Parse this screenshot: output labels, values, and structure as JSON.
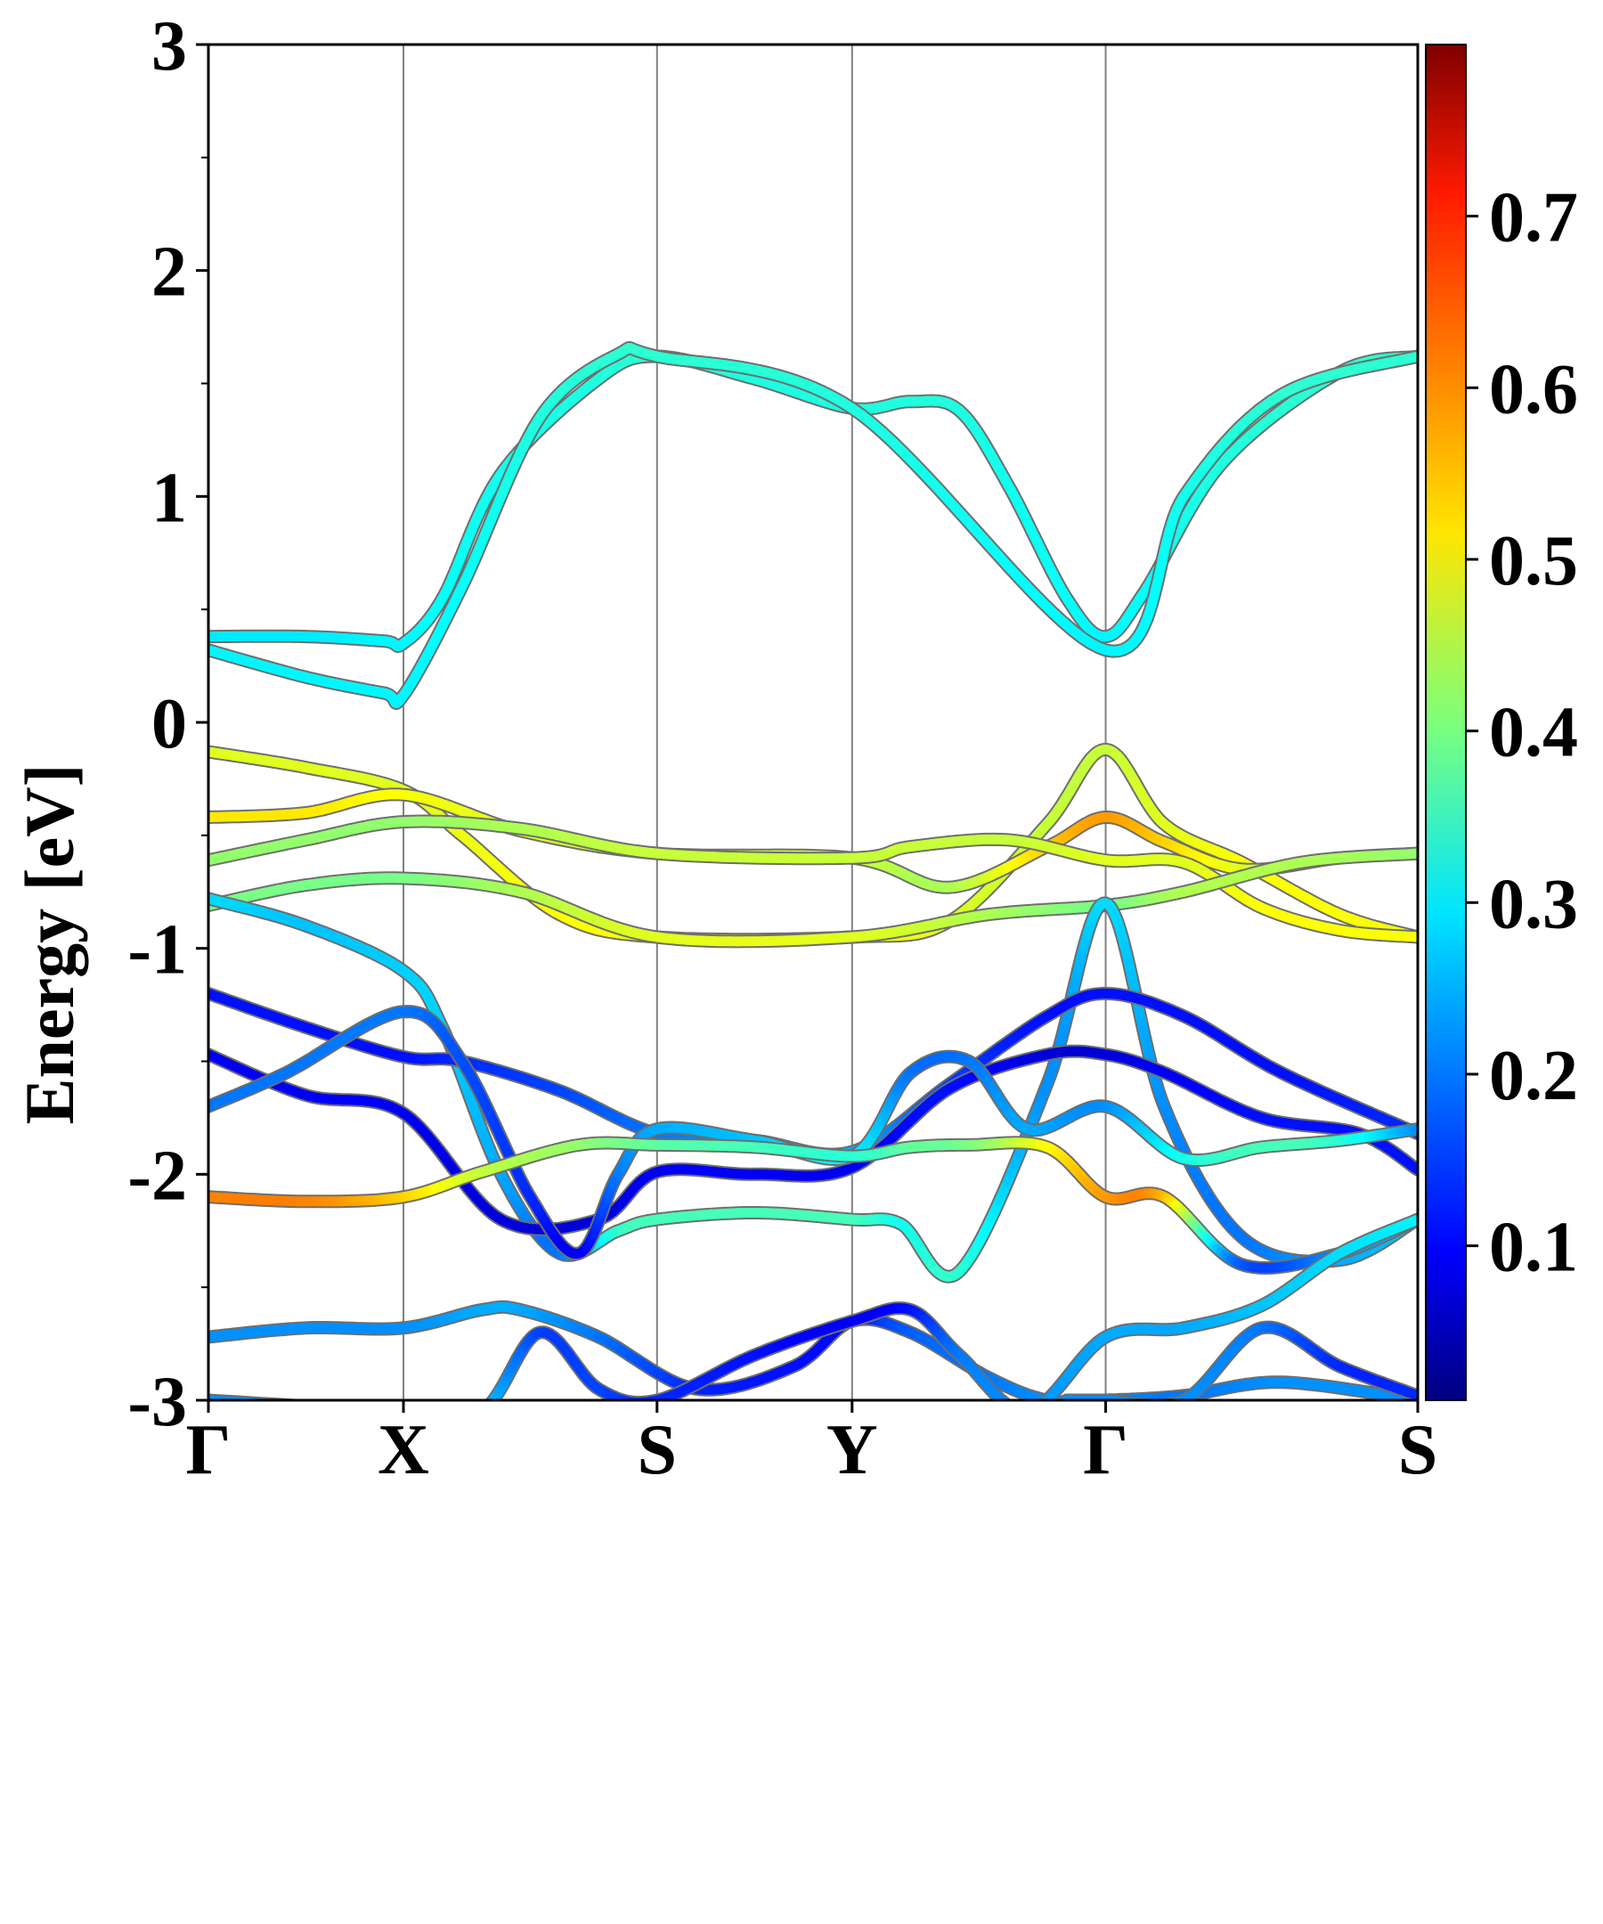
{
  "chart_data": {
    "type": "line",
    "title": "",
    "xlabel": "",
    "ylabel": "Energy [eV]",
    "ylim": [
      -3,
      3
    ],
    "y_ticks": [
      -3,
      -2,
      -1,
      0,
      1,
      2,
      3
    ],
    "y_tick_labels": [
      "-3",
      "-2",
      "-1",
      "0",
      "1",
      "2",
      "3"
    ],
    "y_minor_step": 0.5,
    "x_ticks": [
      0,
      1,
      2.3,
      3.3,
      4.6,
      6.2
    ],
    "x_tick_labels": [
      "Γ",
      "X",
      "S",
      "Y",
      "Γ",
      "S"
    ],
    "xlim": [
      0,
      6.2
    ],
    "grid": "vertical lines at high-symmetry points",
    "colormap": "jet",
    "colorbar": {
      "range": [
        0.01,
        0.8
      ],
      "ticks": [
        0.1,
        0.2,
        0.3,
        0.4,
        0.5,
        0.6,
        0.7
      ],
      "tick_labels": [
        "0.1",
        "0.2",
        "0.3",
        "0.4",
        "0.5",
        "0.6",
        "0.7"
      ],
      "placement": "right"
    },
    "series": [
      {
        "x": [
          0,
          0.5,
          0.9,
          1,
          1.2,
          1.5,
          2.0,
          2.3,
          2.8,
          3.3,
          3.6,
          3.85,
          4.1,
          4.4,
          4.6,
          4.8,
          5.2,
          5.8,
          6.2
        ],
        "y": [
          0.38,
          0.38,
          0.36,
          0.35,
          0.55,
          1.1,
          1.52,
          1.62,
          1.52,
          1.39,
          1.42,
          1.38,
          1.05,
          0.55,
          0.38,
          0.58,
          1.15,
          1.55,
          1.62
        ],
        "c": [
          0.29,
          0.29,
          0.3,
          0.3,
          0.31,
          0.32,
          0.33,
          0.34,
          0.33,
          0.33,
          0.33,
          0.33,
          0.32,
          0.31,
          0.3,
          0.31,
          0.33,
          0.34,
          0.34
        ]
      },
      {
        "x": [
          0,
          0.5,
          0.9,
          1,
          1.3,
          1.7,
          2.1,
          2.3,
          3.3,
          4.6,
          5.0,
          5.5,
          6.2
        ],
        "y": [
          0.32,
          0.2,
          0.13,
          0.12,
          0.6,
          1.35,
          1.63,
          1.62,
          1.39,
          0.32,
          1.0,
          1.45,
          1.62
        ],
        "c": [
          0.3,
          0.3,
          0.3,
          0.3,
          0.31,
          0.33,
          0.34,
          0.34,
          0.33,
          0.3,
          0.32,
          0.34,
          0.34
        ]
      },
      {
        "x": [
          0,
          0.5,
          1,
          1.3,
          1.8,
          2.3,
          3.3,
          3.8,
          4.3,
          4.6,
          4.9,
          5.3,
          5.8,
          6.2
        ],
        "y": [
          -0.13,
          -0.2,
          -0.3,
          -0.5,
          -0.85,
          -0.95,
          -0.95,
          -0.88,
          -0.45,
          -0.12,
          -0.45,
          -0.62,
          -0.85,
          -0.95
        ],
        "c": [
          0.48,
          0.48,
          0.48,
          0.49,
          0.5,
          0.5,
          0.5,
          0.48,
          0.46,
          0.46,
          0.48,
          0.5,
          0.5,
          0.5
        ]
      },
      {
        "x": [
          0,
          0.5,
          1,
          1.6,
          2.3,
          3.3,
          3.8,
          4.3,
          4.6,
          4.9,
          5.3,
          5.8,
          6.2
        ],
        "y": [
          -0.42,
          -0.4,
          -0.32,
          -0.48,
          -0.58,
          -0.6,
          -0.73,
          -0.55,
          -0.42,
          -0.53,
          -0.65,
          -0.6,
          -0.58
        ],
        "c": [
          0.52,
          0.52,
          0.5,
          0.48,
          0.46,
          0.46,
          0.44,
          0.54,
          0.58,
          0.54,
          0.48,
          0.44,
          0.42
        ]
      },
      {
        "x": [
          0,
          0.5,
          1,
          1.6,
          2.3,
          3.3,
          3.6,
          4.1,
          4.6,
          5.0,
          5.4,
          5.8,
          6.2
        ],
        "y": [
          -0.61,
          -0.52,
          -0.44,
          -0.47,
          -0.58,
          -0.6,
          -0.55,
          -0.52,
          -0.61,
          -0.62,
          -0.82,
          -0.92,
          -0.95
        ],
        "c": [
          0.42,
          0.42,
          0.42,
          0.44,
          0.46,
          0.46,
          0.46,
          0.46,
          0.48,
          0.48,
          0.5,
          0.5,
          0.5
        ]
      },
      {
        "x": [
          0,
          0.5,
          1,
          1.6,
          2.3,
          3.3,
          4.0,
          4.6,
          5.0,
          5.6,
          6.2
        ],
        "y": [
          -0.81,
          -0.72,
          -0.69,
          -0.75,
          -0.95,
          -0.95,
          -0.85,
          -0.81,
          -0.75,
          -0.62,
          -0.58
        ],
        "c": [
          0.4,
          0.4,
          0.4,
          0.44,
          0.48,
          0.48,
          0.44,
          0.4,
          0.44,
          0.44,
          0.42
        ]
      },
      {
        "x": [
          0,
          0.5,
          1,
          1.2,
          1.5,
          1.8,
          2.1,
          2.3,
          2.8,
          3.3,
          3.55,
          3.85,
          4.3,
          4.6,
          4.9,
          5.3,
          5.8,
          6.2
        ],
        "y": [
          -0.78,
          -0.9,
          -1.1,
          -1.35,
          -2.0,
          -2.35,
          -2.25,
          -2.2,
          -2.17,
          -2.2,
          -2.22,
          -2.43,
          -1.6,
          -0.8,
          -1.7,
          -2.28,
          -2.38,
          -2.2
        ],
        "c": [
          0.28,
          0.26,
          0.27,
          0.27,
          0.24,
          0.2,
          0.34,
          0.36,
          0.36,
          0.36,
          0.32,
          0.34,
          0.22,
          0.28,
          0.22,
          0.2,
          0.24,
          0.26
        ]
      },
      {
        "x": [
          0,
          0.5,
          1,
          1.3,
          1.8,
          2.3,
          2.8,
          3.3,
          3.8,
          4.3,
          4.6,
          5.0,
          5.5,
          6.2
        ],
        "y": [
          -1.2,
          -1.35,
          -1.48,
          -1.5,
          -1.63,
          -1.82,
          -1.85,
          -1.9,
          -1.6,
          -1.3,
          -1.2,
          -1.3,
          -1.55,
          -1.82
        ],
        "c": [
          0.12,
          0.12,
          0.12,
          0.14,
          0.16,
          0.2,
          0.22,
          0.24,
          0.16,
          0.12,
          0.12,
          0.12,
          0.12,
          0.14
        ]
      },
      {
        "x": [
          0,
          0.5,
          1,
          1.5,
          2.0,
          2.3,
          2.8,
          3.3,
          3.8,
          4.3,
          4.6,
          4.9,
          5.4,
          5.9,
          6.2
        ],
        "y": [
          -1.47,
          -1.65,
          -1.73,
          -2.2,
          -2.2,
          -1.99,
          -2.0,
          -1.97,
          -1.62,
          -1.47,
          -1.47,
          -1.55,
          -1.75,
          -1.82,
          -1.98
        ],
        "c": [
          0.1,
          0.1,
          0.1,
          0.08,
          0.08,
          0.1,
          0.1,
          0.1,
          0.12,
          0.08,
          0.08,
          0.1,
          0.12,
          0.12,
          0.12
        ]
      },
      {
        "x": [
          0,
          0.4,
          1,
          1.3,
          1.65,
          1.9,
          2.1,
          2.3,
          2.8,
          3.3,
          3.6,
          3.9,
          4.2,
          4.6,
          5.0,
          5.4,
          5.8,
          6.2
        ],
        "y": [
          -1.7,
          -1.55,
          -1.28,
          -1.5,
          -2.1,
          -2.35,
          -2.0,
          -1.8,
          -1.85,
          -1.92,
          -1.55,
          -1.5,
          -1.8,
          -1.7,
          -1.93,
          -1.88,
          -1.85,
          -1.8
        ],
        "c": [
          0.2,
          0.2,
          0.2,
          0.17,
          0.14,
          0.1,
          0.2,
          0.24,
          0.26,
          0.3,
          0.2,
          0.2,
          0.24,
          0.22,
          0.32,
          0.36,
          0.34,
          0.22
        ]
      },
      {
        "x": [
          0,
          0.5,
          1,
          1.4,
          1.9,
          2.3,
          2.8,
          3.3,
          3.6,
          3.9,
          4.3,
          4.6,
          4.9,
          5.3,
          5.8,
          6.2
        ],
        "y": [
          -2.1,
          -2.12,
          -2.1,
          -1.99,
          -1.87,
          -1.87,
          -1.88,
          -1.92,
          -1.88,
          -1.87,
          -1.88,
          -2.1,
          -2.1,
          -2.4,
          -2.35,
          -2.2
        ],
        "c": [
          0.6,
          0.6,
          0.54,
          0.46,
          0.42,
          0.38,
          0.36,
          0.34,
          0.38,
          0.4,
          0.5,
          0.58,
          0.56,
          0.18,
          0.22,
          0.26
        ]
      },
      {
        "x": [
          0,
          0.5,
          1,
          1.4,
          1.6,
          2.0,
          2.5,
          3.0,
          3.3,
          3.6,
          4.0,
          4.3,
          4.6,
          5.0,
          5.5,
          6.2
        ],
        "y": [
          -2.72,
          -2.68,
          -2.68,
          -2.6,
          -2.6,
          -2.72,
          -2.95,
          -2.85,
          -2.65,
          -2.7,
          -2.9,
          -3.0,
          -3.0,
          -2.98,
          -2.92,
          -3.0
        ],
        "c": [
          0.22,
          0.22,
          0.22,
          0.24,
          0.24,
          0.2,
          0.14,
          0.12,
          0.12,
          0.18,
          0.2,
          0.22,
          0.22,
          0.2,
          0.22,
          0.22
        ]
      },
      {
        "x": [
          0,
          1,
          1.4,
          1.7,
          2.0,
          2.3,
          2.8,
          3.3,
          3.6,
          3.85,
          4.2,
          4.6,
          5.0,
          5.4,
          5.8,
          6.2
        ],
        "y": [
          -3.0,
          -3.05,
          -3.05,
          -2.7,
          -2.95,
          -3.0,
          -2.8,
          -2.65,
          -2.6,
          -2.8,
          -3.05,
          -2.72,
          -2.68,
          -2.58,
          -2.35,
          -2.2
        ],
        "c": [
          0.22,
          0.22,
          0.26,
          0.16,
          0.16,
          0.14,
          0.12,
          0.1,
          0.12,
          0.2,
          0.22,
          0.24,
          0.24,
          0.26,
          0.28,
          0.3
        ]
      },
      {
        "x": [
          4.4,
          4.6,
          5.0,
          5.4,
          5.8,
          6.2
        ],
        "y": [
          -3.0,
          -3.0,
          -3.0,
          -2.68,
          -2.85,
          -2.98
        ],
        "c": [
          0.22,
          0.22,
          0.22,
          0.2,
          0.14,
          0.14
        ]
      }
    ]
  }
}
